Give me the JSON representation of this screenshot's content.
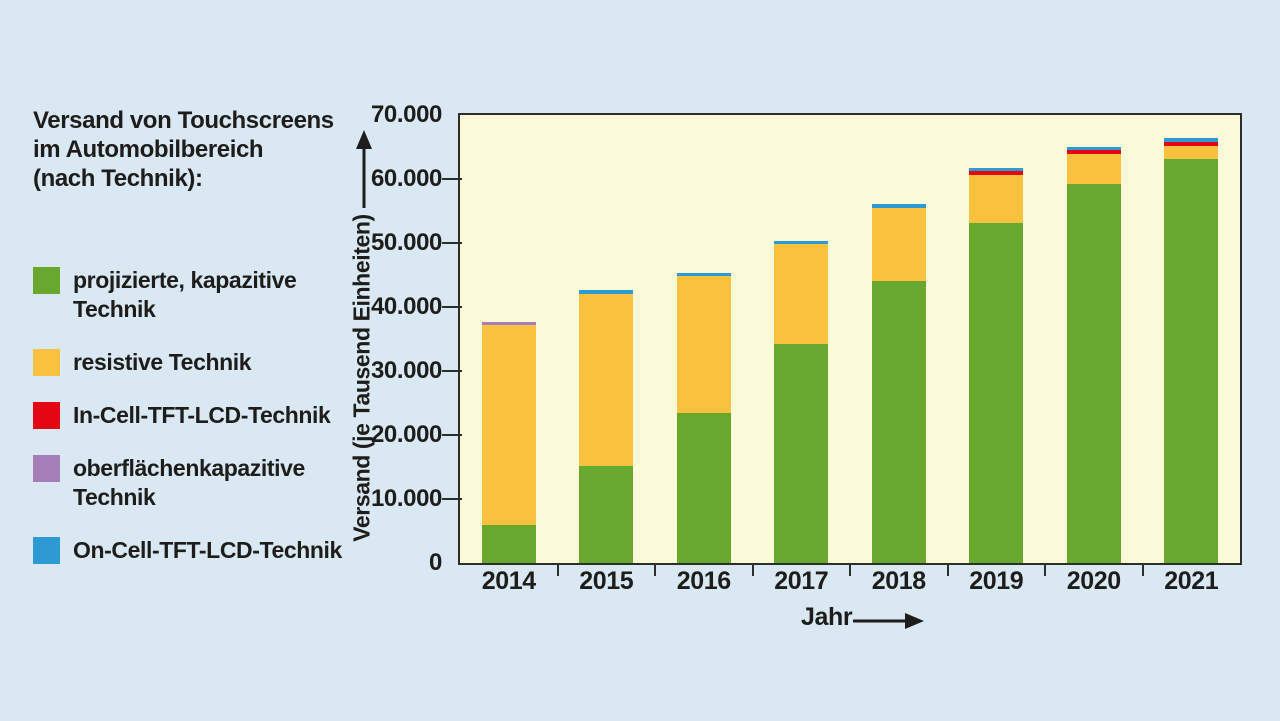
{
  "title": "Versand von Touchscreens\nim Automobilbereich\n(nach Technik):",
  "legend": {
    "items": [
      {
        "label": "projizierte, kapazitive\nTechnik"
      },
      {
        "label": "resistive Technik"
      },
      {
        "label": "In-Cell-TFT-LCD-Technik"
      },
      {
        "label": "oberflächenkapazitive\nTechnik"
      },
      {
        "label": "On-Cell-TFT-LCD-Technik"
      }
    ]
  },
  "chart_data": {
    "type": "bar",
    "stacked": true,
    "title": "Versand von Touchscreens im Automobilbereich (nach Technik)",
    "xlabel": "Jahr",
    "ylabel": "Versand (je Tausend Einheiten)",
    "ylim": [
      0,
      70000
    ],
    "ytick_step": 10000,
    "ytick_labels": [
      "0",
      "10.000",
      "20.000",
      "30.000",
      "40.000",
      "50.000",
      "60.000",
      "70.000"
    ],
    "categories": [
      "2014",
      "2015",
      "2016",
      "2017",
      "2018",
      "2019",
      "2020",
      "2021"
    ],
    "series": [
      {
        "name": "projizierte, kapazitive Technik",
        "color": "#69a82f",
        "values": [
          6000,
          15200,
          23400,
          34300,
          44000,
          53200,
          59200,
          63100
        ]
      },
      {
        "name": "resistive Technik",
        "color": "#fac23e",
        "values": [
          31200,
          26900,
          21400,
          15500,
          11500,
          7500,
          4700,
          2100
        ]
      },
      {
        "name": "In-Cell-TFT-LCD-Technik",
        "color": "#e30613",
        "values": [
          0,
          0,
          0,
          0,
          0,
          550,
          600,
          600
        ]
      },
      {
        "name": "oberflächenkapazitive Technik",
        "color": "#a77fb8",
        "values": [
          400,
          0,
          0,
          0,
          0,
          0,
          0,
          0
        ]
      },
      {
        "name": "On-Cell-TFT-LCD-Technik",
        "color": "#2d9ad3",
        "values": [
          0,
          500,
          500,
          600,
          600,
          550,
          500,
          600
        ]
      }
    ],
    "legend_position": "left",
    "grid": false
  },
  "colors": {
    "background": "#d9e8f2",
    "plot_background": "#faf9d8",
    "axis": "#2d2d2a",
    "text": "#1d1d1b"
  }
}
